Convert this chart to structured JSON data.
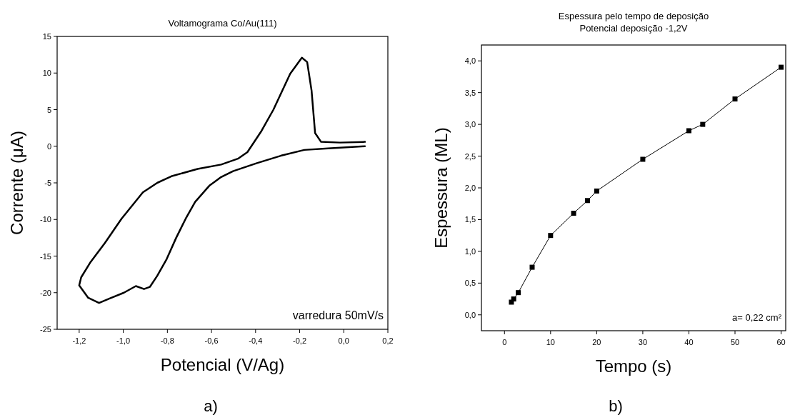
{
  "chart_data": [
    {
      "type": "line",
      "title": "Voltamograma Co/Au(111)",
      "xlabel": "Potencial (V/Ag)",
      "ylabel": "Corrente (μA)",
      "annotations": [
        "varredura 50mV/s",
        "a)"
      ],
      "marker": "none",
      "line_style": "solid",
      "grid": false,
      "xlim": [
        -1.3,
        0.2
      ],
      "ylim": [
        -25,
        15
      ],
      "xticks": [
        {
          "value": -1.2,
          "label": "-1,2"
        },
        {
          "value": -1.0,
          "label": "-1,0"
        },
        {
          "value": -0.8,
          "label": "-0,8"
        },
        {
          "value": -0.6,
          "label": "-0,6"
        },
        {
          "value": -0.4,
          "label": "-0,4"
        },
        {
          "value": -0.2,
          "label": "-0,2"
        },
        {
          "value": 0,
          "label": "0,0"
        },
        {
          "value": 0.2,
          "label": "0,2"
        }
      ],
      "yticks": [
        -25,
        -20,
        -15,
        -10,
        -5,
        0,
        5,
        10,
        15
      ],
      "series": [
        {
          "color": "#000000",
          "x": [
            0.096,
            -0.071,
            -0.179,
            -0.286,
            -0.394,
            -0.502,
            -0.556,
            -0.61,
            -0.674,
            -0.717,
            -0.76,
            -0.803,
            -0.846,
            -0.879,
            -0.906,
            -0.943,
            -0.997,
            -1.062,
            -1.11,
            -1.159,
            -1.2,
            -1.191,
            -1.148,
            -1.083,
            -1.008,
            -0.911,
            -0.846,
            -0.782,
            -0.663,
            -0.556,
            -0.48,
            -0.437,
            -0.373,
            -0.319,
            -0.243,
            -0.19,
            -0.166,
            -0.146,
            -0.13,
            -0.103,
            -0.017,
            0.096
          ],
          "values": [
            0,
            -0.3,
            -0.5,
            -1.3,
            -2.3,
            -3.4,
            -4.2,
            -5.4,
            -7.6,
            -9.9,
            -12.5,
            -15.4,
            -17.7,
            -19.2,
            -19.5,
            -19.1,
            -20,
            -20.8,
            -21.4,
            -20.7,
            -19,
            -17.9,
            -15.8,
            -13.2,
            -9.9,
            -6.3,
            -5,
            -4.1,
            -3.1,
            -2.5,
            -1.7,
            -0.8,
            2.1,
            5,
            9.9,
            12.1,
            11.5,
            7.6,
            1.8,
            0.6,
            0.5,
            0.6
          ]
        }
      ]
    },
    {
      "type": "line",
      "title": "Espessura pelo tempo de deposição",
      "subtitle": "Potencial deposição -1,2V",
      "xlabel": "Tempo (s)",
      "ylabel": "Espessura (ML)",
      "annotations": [
        "a= 0,22 cm²",
        "b)"
      ],
      "marker": "square",
      "line_style": "solid",
      "grid": false,
      "xlim": [
        -5,
        61
      ],
      "ylim": [
        -0.25,
        4.25
      ],
      "xticks": [
        0,
        10,
        20,
        30,
        40,
        50,
        60
      ],
      "yticks": [
        {
          "value": 0,
          "label": "0,0"
        },
        {
          "value": 0.5,
          "label": "0,5"
        },
        {
          "value": 1,
          "label": "1,0"
        },
        {
          "value": 1.5,
          "label": "1,5"
        },
        {
          "value": 2,
          "label": "2,0"
        },
        {
          "value": 2.5,
          "label": "2,5"
        },
        {
          "value": 3,
          "label": "3,0"
        },
        {
          "value": 3.5,
          "label": "3,5"
        },
        {
          "value": 4,
          "label": "4,0"
        }
      ],
      "series": [
        {
          "color": "#000000",
          "x": [
            1.5,
            2,
            3,
            6,
            10,
            15,
            18,
            20,
            30,
            40,
            43,
            50,
            60
          ],
          "values": [
            0.2,
            0.25,
            0.35,
            0.75,
            1.25,
            1.6,
            1.8,
            1.95,
            2.45,
            2.9,
            3.0,
            3.4,
            3.9
          ]
        }
      ]
    }
  ]
}
